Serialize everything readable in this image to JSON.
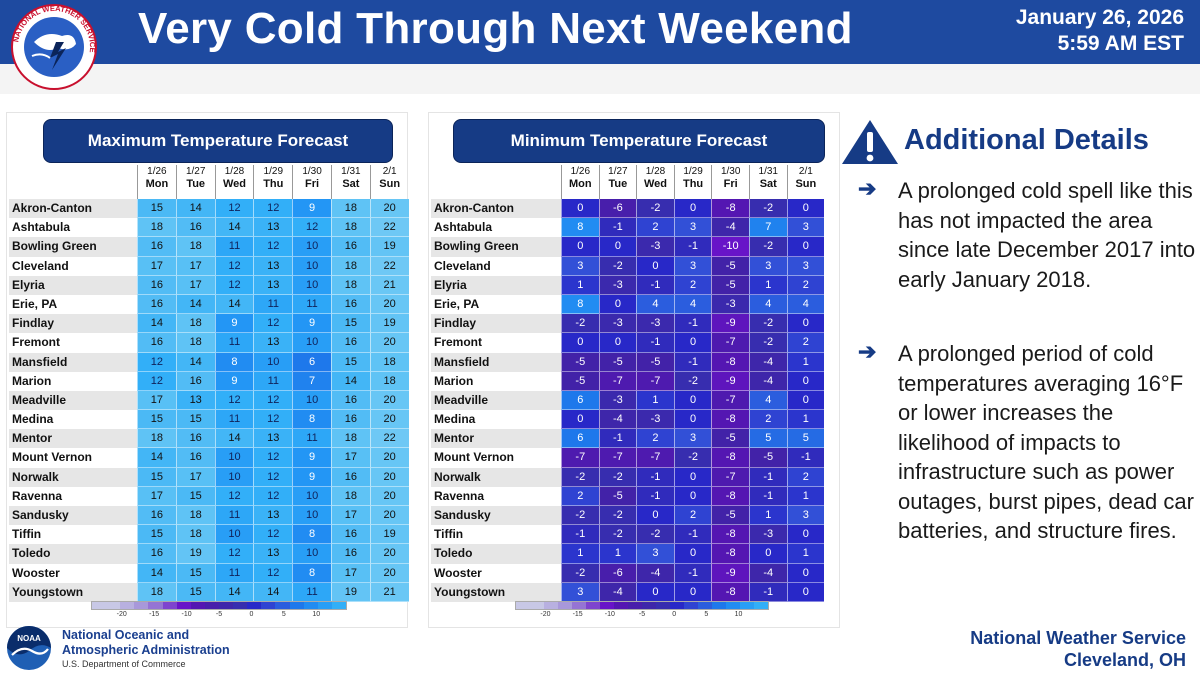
{
  "header": {
    "title": "Very Cold Through Next Weekend",
    "date": "January 26, 2026",
    "time": "5:59 AM EST",
    "logo_text": "NATIONAL WEATHER SERVICE",
    "background": "#1e4aa0"
  },
  "days": [
    {
      "date": "1/26",
      "dow": "Mon"
    },
    {
      "date": "1/27",
      "dow": "Tue"
    },
    {
      "date": "1/28",
      "dow": "Wed"
    },
    {
      "date": "1/29",
      "dow": "Thu"
    },
    {
      "date": "1/30",
      "dow": "Fri"
    },
    {
      "date": "1/31",
      "dow": "Sat"
    },
    {
      "date": "2/1",
      "dow": "Sun"
    }
  ],
  "cities": [
    "Akron-Canton",
    "Ashtabula",
    "Bowling Green",
    "Cleveland",
    "Elyria",
    "Erie, PA",
    "Findlay",
    "Fremont",
    "Mansfield",
    "Marion",
    "Meadville",
    "Medina",
    "Mentor",
    "Mount Vernon",
    "Norwalk",
    "Ravenna",
    "Sandusky",
    "Tiffin",
    "Toledo",
    "Wooster",
    "Youngstown"
  ],
  "max_table": {
    "title": "Maximum Temperature Forecast",
    "values": [
      [
        15,
        14,
        12,
        12,
        9,
        18,
        20
      ],
      [
        18,
        16,
        14,
        13,
        12,
        18,
        22
      ],
      [
        16,
        18,
        11,
        12,
        10,
        16,
        19
      ],
      [
        17,
        17,
        12,
        13,
        10,
        18,
        22
      ],
      [
        16,
        17,
        12,
        13,
        10,
        18,
        21
      ],
      [
        16,
        14,
        14,
        11,
        11,
        16,
        20
      ],
      [
        14,
        18,
        9,
        12,
        9,
        15,
        19
      ],
      [
        16,
        18,
        11,
        13,
        10,
        16,
        20
      ],
      [
        12,
        14,
        8,
        10,
        6,
        15,
        18
      ],
      [
        12,
        16,
        9,
        11,
        7,
        14,
        18
      ],
      [
        17,
        13,
        12,
        12,
        10,
        16,
        20
      ],
      [
        15,
        15,
        11,
        12,
        8,
        16,
        20
      ],
      [
        18,
        16,
        14,
        13,
        11,
        18,
        22
      ],
      [
        14,
        16,
        10,
        12,
        9,
        17,
        20
      ],
      [
        15,
        17,
        10,
        12,
        9,
        16,
        20
      ],
      [
        17,
        15,
        12,
        12,
        10,
        18,
        20
      ],
      [
        16,
        18,
        11,
        13,
        10,
        17,
        20
      ],
      [
        15,
        18,
        10,
        12,
        8,
        16,
        19
      ],
      [
        16,
        19,
        12,
        13,
        10,
        16,
        20
      ],
      [
        14,
        15,
        11,
        12,
        8,
        17,
        20
      ],
      [
        18,
        15,
        14,
        14,
        11,
        19,
        21
      ]
    ],
    "legend_ticks": [
      "-20",
      "-15",
      "-10",
      "-5",
      "0",
      "5",
      "10"
    ]
  },
  "min_table": {
    "title": "Minimum Temperature Forecast",
    "values": [
      [
        0,
        -6,
        -2,
        0,
        -8,
        -2,
        0
      ],
      [
        8,
        -1,
        2,
        3,
        -4,
        7,
        3
      ],
      [
        0,
        0,
        -3,
        -1,
        -10,
        -2,
        0
      ],
      [
        3,
        -2,
        0,
        3,
        -5,
        3,
        3
      ],
      [
        1,
        -3,
        -1,
        2,
        -5,
        1,
        2
      ],
      [
        8,
        0,
        4,
        4,
        -3,
        4,
        4
      ],
      [
        -2,
        -3,
        -3,
        -1,
        -9,
        -2,
        0
      ],
      [
        0,
        0,
        -1,
        0,
        -7,
        -2,
        2
      ],
      [
        -5,
        -5,
        -5,
        -1,
        -8,
        -4,
        1
      ],
      [
        -5,
        -7,
        -7,
        -2,
        -9,
        -4,
        0
      ],
      [
        6,
        -3,
        1,
        0,
        -7,
        4,
        0
      ],
      [
        0,
        -4,
        -3,
        0,
        -8,
        2,
        1
      ],
      [
        6,
        -1,
        2,
        3,
        -5,
        5,
        5
      ],
      [
        -7,
        -7,
        -7,
        -2,
        -8,
        -5,
        -1
      ],
      [
        -2,
        -2,
        -1,
        0,
        -7,
        -1,
        2
      ],
      [
        2,
        -5,
        -1,
        0,
        -8,
        -1,
        1
      ],
      [
        -2,
        -2,
        0,
        2,
        -5,
        1,
        3
      ],
      [
        -1,
        -2,
        -2,
        -1,
        -8,
        -3,
        0
      ],
      [
        1,
        1,
        3,
        0,
        -8,
        0,
        1
      ],
      [
        -2,
        -6,
        -4,
        -1,
        -9,
        -4,
        0
      ],
      [
        3,
        -4,
        0,
        0,
        -8,
        -1,
        0
      ]
    ],
    "legend_ticks": [
      "-20",
      "-15",
      "-10",
      "-5",
      "0",
      "5",
      "10"
    ]
  },
  "details": {
    "title": "Additional Details",
    "bullets": [
      "A prolonged cold spell like this has not impacted the area since late December 2017 into early January 2018.",
      "A prolonged period of cold temperatures averaging 16°F or lower increases the likelihood of impacts to infrastructure such as power outages, burst pipes, dead car batteries, and structure fires."
    ],
    "arrow": "➔"
  },
  "footer": {
    "noaa_logo_text": "NOAA",
    "noaa_line1": "National Oceanic and",
    "noaa_line2": "Atmospheric Administration",
    "noaa_dept": "U.S. Department of Commerce",
    "office_line1": "National Weather Service",
    "office_line2": "Cleveland, OH"
  },
  "colors": {
    "accent": "#163b85",
    "header": "#1e4aa0"
  }
}
